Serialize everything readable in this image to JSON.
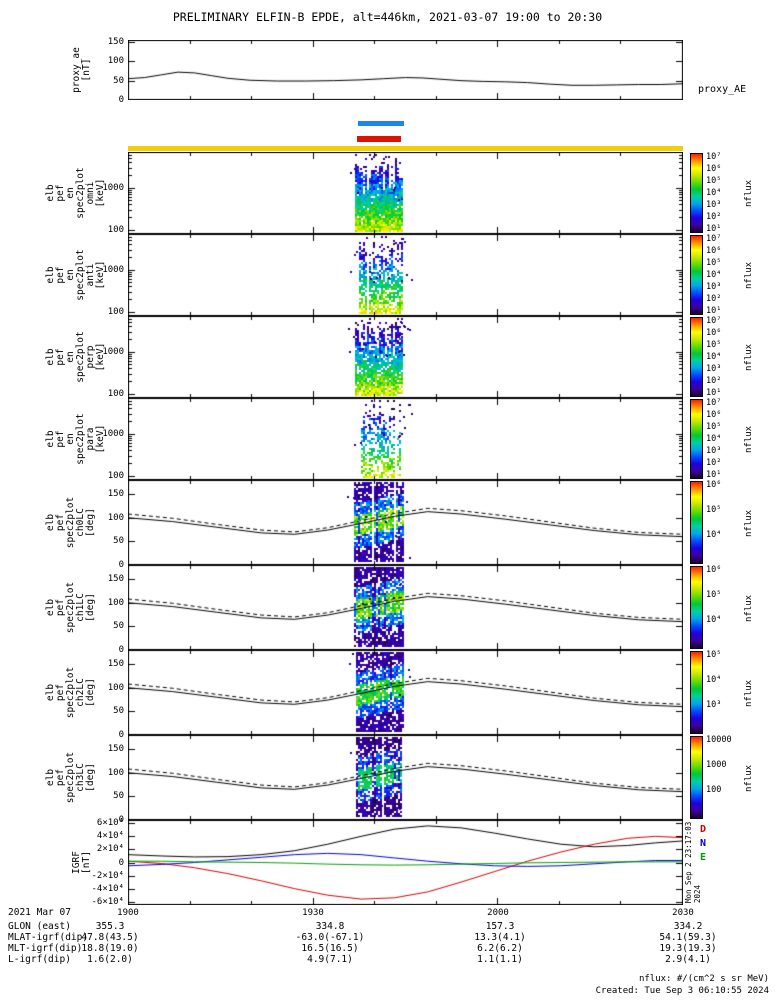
{
  "title": "PRELIMINARY ELFIN-B EPDE, alt=446km, 2021-03-07 19:00 to 20:30",
  "xaxis": {
    "ticks": [
      "1900",
      "1930",
      "2000",
      "2030"
    ]
  },
  "colors": {
    "zone_blue": "#1c86ee",
    "zone_red": "#dd1400",
    "band_yellow": "#f0d000",
    "line_black": "#000000",
    "igrf_d_red": "#d00000",
    "igrf_n_blue": "#0000d0",
    "igrf_e_green": "#00a000",
    "colormap": [
      "#1a0030",
      "#3c00a0",
      "#1f00e0",
      "#0050ff",
      "#00a8e8",
      "#00d0a0",
      "#00c832",
      "#64dc00",
      "#c8e600",
      "#ffff00",
      "#ff9600",
      "#ff1e00"
    ]
  },
  "footer": {
    "date_label": "2021 Mar 07",
    "nflux_units": "nflux: #/(cm^2 s sr MeV)",
    "created": "Created: Tue Sep  3 06:10:55 2024",
    "side_stamp": "Mon Sep  2 23:17:03 2024",
    "rows": [
      {
        "label": "GLON (east)",
        "values": [
          "355.3",
          "334.8",
          "157.3",
          "334.2"
        ]
      },
      {
        "label": "MLAT-igrf(dip)",
        "values": [
          "47.8(43.5)",
          "-63.0(-67.1)",
          "13.3(4.1)",
          "54.1(59.3)"
        ]
      },
      {
        "label": "MLT-igrf(dip)",
        "values": [
          "18.8(19.0)",
          "16.5(16.5)",
          "6.2(6.2)",
          "19.3(19.3)"
        ]
      },
      {
        "label": "L-igrf(dip)",
        "values": [
          "1.6(2.0)",
          "4.9(7.1)",
          "1.1(1.1)",
          "2.9(4.1)"
        ]
      }
    ]
  },
  "chart_data": {
    "loss_cone": {
      "solid": [
        [
          0,
          100
        ],
        [
          0.08,
          92
        ],
        [
          0.16,
          80
        ],
        [
          0.24,
          68
        ],
        [
          0.3,
          65
        ],
        [
          0.36,
          74
        ],
        [
          0.42,
          88
        ],
        [
          0.48,
          103
        ],
        [
          0.54,
          113
        ],
        [
          0.6,
          108
        ],
        [
          0.68,
          97
        ],
        [
          0.76,
          85
        ],
        [
          0.84,
          73
        ],
        [
          0.92,
          64
        ],
        [
          1,
          60
        ]
      ],
      "dashed": [
        [
          0,
          108
        ],
        [
          0.08,
          99
        ],
        [
          0.16,
          86
        ],
        [
          0.24,
          74
        ],
        [
          0.3,
          70
        ],
        [
          0.36,
          79
        ],
        [
          0.42,
          94
        ],
        [
          0.48,
          109
        ],
        [
          0.54,
          120
        ],
        [
          0.6,
          115
        ],
        [
          0.68,
          104
        ],
        [
          0.76,
          91
        ],
        [
          0.84,
          78
        ],
        [
          0.92,
          69
        ],
        [
          1,
          65
        ]
      ]
    },
    "panels": [
      {
        "id": "proxy_ae",
        "type": "line",
        "ylabel_lines": [
          "proxy_ae",
          "[nT]"
        ],
        "right_label": "proxy_AE",
        "ylim": [
          0,
          155
        ],
        "yticks": [
          {
            "v": 0,
            "t": "0"
          },
          {
            "v": 50,
            "t": "50"
          },
          {
            "v": 100,
            "t": "100"
          },
          {
            "v": 150,
            "t": "150"
          }
        ],
        "x": [
          0,
          0.03,
          0.06,
          0.09,
          0.12,
          0.15,
          0.18,
          0.22,
          0.27,
          0.32,
          0.37,
          0.42,
          0.46,
          0.5,
          0.53,
          0.56,
          0.6,
          0.64,
          0.68,
          0.72,
          0.76,
          0.8,
          0.84,
          0.88,
          0.92,
          0.96,
          1
        ],
        "y": [
          55,
          58,
          65,
          72,
          70,
          63,
          56,
          51,
          49,
          49,
          50,
          52,
          55,
          58,
          57,
          54,
          50,
          48,
          47,
          45,
          41,
          38,
          38,
          39,
          40,
          40,
          42
        ]
      },
      {
        "id": "en_omni",
        "type": "energy-spectrogram",
        "ylabel_lines": [
          "elb",
          "pef",
          "en",
          "spec2plot",
          "omni",
          "[keV]"
        ],
        "yscale": "log",
        "ylim": [
          80,
          7000
        ],
        "yticks": [
          {
            "v": 100,
            "t": "100"
          },
          {
            "v": 1000,
            "t": "1000"
          }
        ],
        "colorbar_ticks": [
          "10⁷",
          "10⁶",
          "10⁵",
          "10⁴",
          "10³",
          "10²",
          "10¹"
        ],
        "colorbar_label": "nflux",
        "zone": {
          "x0": 0.409,
          "x1": 0.492,
          "density": 0.95
        }
      },
      {
        "id": "en_anti",
        "type": "energy-spectrogram",
        "ylabel_lines": [
          "elb",
          "pef",
          "en",
          "spec2plot",
          "anti",
          "[keV]"
        ],
        "yscale": "log",
        "ylim": [
          80,
          7000
        ],
        "yticks": [
          {
            "v": 100,
            "t": "100"
          },
          {
            "v": 1000,
            "t": "1000"
          }
        ],
        "colorbar_ticks": [
          "10⁷",
          "10⁶",
          "10⁵",
          "10⁴",
          "10³",
          "10²",
          "10¹"
        ],
        "colorbar_label": "nflux",
        "zone": {
          "x0": 0.416,
          "x1": 0.492,
          "density": 0.7
        }
      },
      {
        "id": "en_perp",
        "type": "energy-spectrogram",
        "ylabel_lines": [
          "elb",
          "pef",
          "en",
          "spec2plot",
          "perp",
          "[keV]"
        ],
        "yscale": "log",
        "ylim": [
          80,
          7000
        ],
        "yticks": [
          {
            "v": 100,
            "t": "100"
          },
          {
            "v": 1000,
            "t": "1000"
          }
        ],
        "colorbar_ticks": [
          "10⁷",
          "10⁶",
          "10⁵",
          "10⁴",
          "10³",
          "10²",
          "10¹"
        ],
        "colorbar_label": "nflux",
        "zone": {
          "x0": 0.409,
          "x1": 0.492,
          "density": 0.88
        }
      },
      {
        "id": "en_para",
        "type": "energy-spectrogram",
        "ylabel_lines": [
          "elb",
          "pef",
          "en",
          "spec2plot",
          "para",
          "[keV]"
        ],
        "yscale": "log",
        "ylim": [
          80,
          7000
        ],
        "yticks": [
          {
            "v": 100,
            "t": "100"
          },
          {
            "v": 1000,
            "t": "1000"
          }
        ],
        "colorbar_ticks": [
          "10⁷",
          "10⁶",
          "10⁵",
          "10⁴",
          "10³",
          "10²",
          "10¹"
        ],
        "colorbar_label": "nflux",
        "zone": {
          "x0": 0.42,
          "x1": 0.492,
          "density": 0.5
        }
      },
      {
        "id": "pa_ch0",
        "type": "pitch-spectrogram",
        "ylabel_lines": [
          "elb",
          "pef",
          "spec2plot",
          "ch0LC",
          "[deg]"
        ],
        "ylim": [
          0,
          180
        ],
        "yticks": [
          {
            "v": 0,
            "t": "0"
          },
          {
            "v": 50,
            "t": "50"
          },
          {
            "v": 100,
            "t": "100"
          },
          {
            "v": 150,
            "t": "150"
          }
        ],
        "colorbar_ticks": [
          "10⁶",
          "10⁵",
          "10⁴"
        ],
        "colorbar_label": "nflux",
        "zone": {
          "x0": 0.407,
          "x1": 0.494,
          "density": 0.9
        }
      },
      {
        "id": "pa_ch1",
        "type": "pitch-spectrogram",
        "ylabel_lines": [
          "elb",
          "pef",
          "spec2plot",
          "ch1LC",
          "[deg]"
        ],
        "ylim": [
          0,
          180
        ],
        "yticks": [
          {
            "v": 0,
            "t": "0"
          },
          {
            "v": 50,
            "t": "50"
          },
          {
            "v": 100,
            "t": "100"
          },
          {
            "v": 150,
            "t": "150"
          }
        ],
        "colorbar_ticks": [
          "10⁶",
          "10⁵",
          "10⁴"
        ],
        "colorbar_label": "nflux",
        "zone": {
          "x0": 0.407,
          "x1": 0.494,
          "density": 0.88
        }
      },
      {
        "id": "pa_ch2",
        "type": "pitch-spectrogram",
        "ylabel_lines": [
          "elb",
          "pef",
          "spec2plot",
          "ch2LC",
          "[deg]"
        ],
        "ylim": [
          0,
          180
        ],
        "yticks": [
          {
            "v": 0,
            "t": "0"
          },
          {
            "v": 50,
            "t": "50"
          },
          {
            "v": 100,
            "t": "100"
          },
          {
            "v": 150,
            "t": "150"
          }
        ],
        "colorbar_ticks": [
          "10⁵",
          "10⁴",
          "10³"
        ],
        "colorbar_label": "nflux",
        "zone": {
          "x0": 0.41,
          "x1": 0.494,
          "density": 0.85,
          "gain": 0.9
        }
      },
      {
        "id": "pa_ch3",
        "type": "pitch-spectrogram",
        "ylabel_lines": [
          "elb",
          "pef",
          "spec2plot",
          "ch3LC",
          "[deg]"
        ],
        "ylim": [
          0,
          180
        ],
        "yticks": [
          {
            "v": 0,
            "t": "0"
          },
          {
            "v": 50,
            "t": "50"
          },
          {
            "v": 100,
            "t": "100"
          },
          {
            "v": 150,
            "t": "150"
          }
        ],
        "colorbar_ticks": [
          "10000",
          "1000",
          "100"
        ],
        "colorbar_label": "nflux",
        "zone": {
          "x0": 0.41,
          "x1": 0.492,
          "density": 0.8,
          "gain": 0.82
        }
      },
      {
        "id": "igrf",
        "type": "multiline",
        "ylabel_lines": [
          "IGRF",
          "[nT]"
        ],
        "ylim": [
          -65000,
          65000
        ],
        "yticks": [
          {
            "v": 60000,
            "t": "6×10⁴"
          },
          {
            "v": 40000,
            "t": "4×10⁴"
          },
          {
            "v": 20000,
            "t": "2×10⁴"
          },
          {
            "v": 0,
            "t": "0"
          },
          {
            "v": -20000,
            "t": "-2×10⁴"
          },
          {
            "v": -40000,
            "t": "-4×10⁴"
          },
          {
            "v": -60000,
            "t": "-6×10⁴"
          }
        ],
        "series": [
          {
            "label": "",
            "color": "#000000",
            "x": [
              0,
              0.06,
              0.12,
              0.18,
              0.24,
              0.3,
              0.36,
              0.42,
              0.48,
              0.54,
              0.6,
              0.66,
              0.72,
              0.78,
              0.84,
              0.9,
              0.95,
              1
            ],
            "y": [
              12000,
              10000,
              8500,
              9000,
              12000,
              18000,
              28000,
              40000,
              51000,
              56000,
              53000,
              45000,
              36000,
              28000,
              24000,
              26000,
              30000,
              33000
            ]
          },
          {
            "label": "D",
            "color": "#d00000",
            "x": [
              0,
              0.06,
              0.12,
              0.18,
              0.24,
              0.3,
              0.36,
              0.42,
              0.48,
              0.54,
              0.6,
              0.66,
              0.72,
              0.78,
              0.84,
              0.9,
              0.95,
              1
            ],
            "y": [
              2000,
              -1500,
              -8000,
              -17000,
              -28000,
              -40000,
              -50000,
              -56000,
              -54000,
              -45000,
              -30000,
              -14000,
              2000,
              16000,
              28000,
              37000,
              40000,
              38000
            ]
          },
          {
            "label": "N",
            "color": "#0000d0",
            "x": [
              0,
              0.06,
              0.12,
              0.18,
              0.24,
              0.3,
              0.36,
              0.42,
              0.48,
              0.54,
              0.6,
              0.66,
              0.72,
              0.78,
              0.84,
              0.9,
              0.95,
              1
            ],
            "y": [
              -5000,
              -3000,
              0,
              4000,
              8000,
              12000,
              14000,
              12000,
              7000,
              2000,
              -2000,
              -5000,
              -6000,
              -5000,
              -2000,
              1000,
              3000,
              3000
            ]
          },
          {
            "label": "E",
            "color": "#00a000",
            "x": [
              0,
              0.06,
              0.12,
              0.18,
              0.24,
              0.3,
              0.36,
              0.42,
              0.48,
              0.54,
              0.6,
              0.66,
              0.72,
              0.78,
              0.84,
              0.9,
              0.95,
              1
            ],
            "y": [
              2000,
              2000,
              1000,
              500,
              0,
              -1000,
              -2500,
              -3500,
              -4000,
              -3500,
              -2500,
              -1500,
              -500,
              0,
              500,
              1000,
              1000,
              1000
            ]
          }
        ]
      }
    ]
  }
}
